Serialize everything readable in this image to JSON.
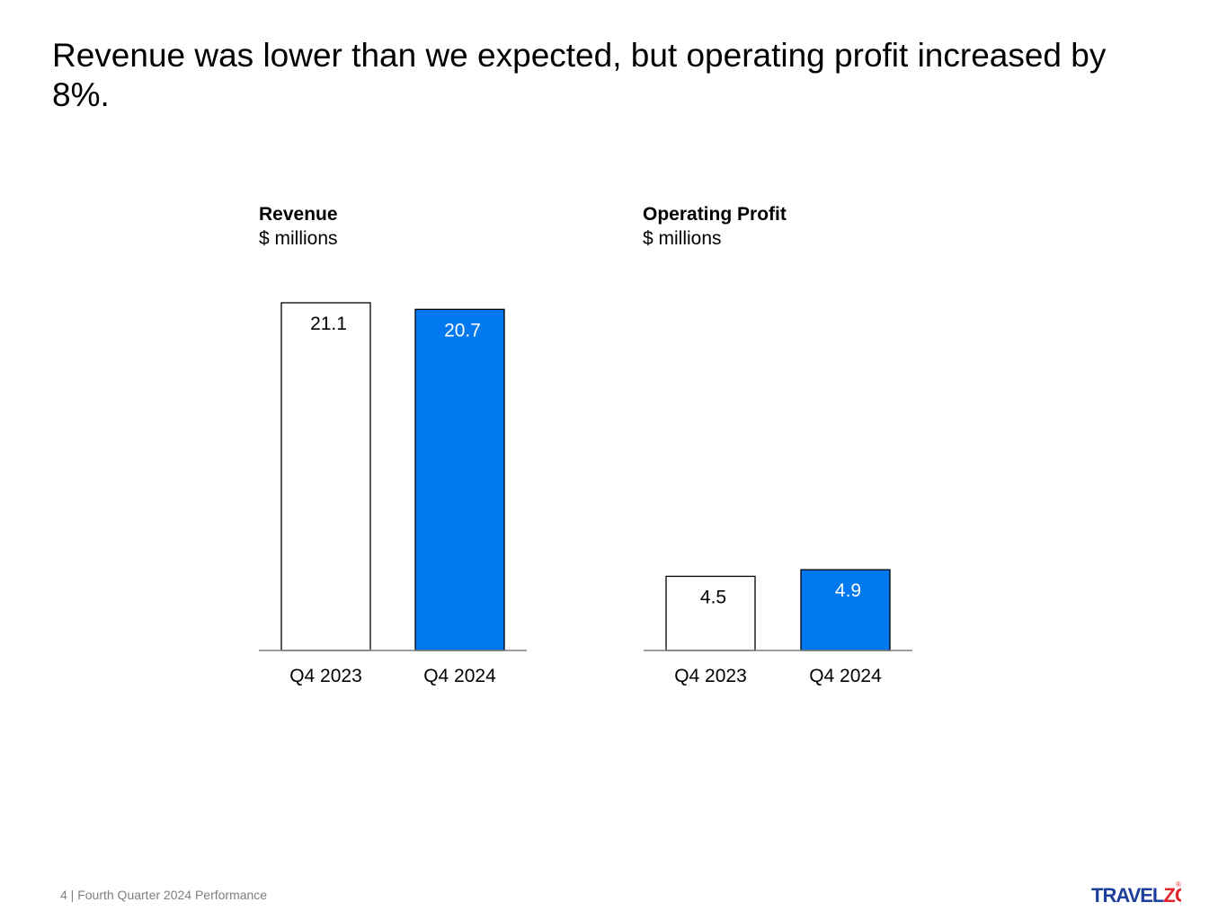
{
  "slide": {
    "title": "Revenue was lower than we expected, but operating profit increased by 8%.",
    "footer": "4 | Fourth Quarter 2024 Performance",
    "logo": {
      "text_main": "TRAVEL",
      "text_accent": "ZOO",
      "mark": "®"
    }
  },
  "colors": {
    "highlight": "#0078ef",
    "plain": "#ffffff",
    "outline": "#000000",
    "axis": "#7f7f7f",
    "logo_blue": "#1b3f9a",
    "logo_red": "#e3262d"
  },
  "chart_data": [
    {
      "type": "bar",
      "title": "Revenue",
      "subtitle": "$ millions",
      "categories": [
        "Q4 2023",
        "Q4 2024"
      ],
      "values": [
        21.1,
        20.7
      ],
      "labels": [
        "21.1",
        "20.7"
      ],
      "highlight": [
        false,
        true
      ],
      "ylim": [
        0,
        21.1
      ]
    },
    {
      "type": "bar",
      "title": "Operating Profit",
      "subtitle": "$ millions",
      "categories": [
        "Q4 2023",
        "Q4 2024"
      ],
      "values": [
        4.5,
        4.9
      ],
      "labels": [
        "4.5",
        "4.9"
      ],
      "highlight": [
        false,
        true
      ],
      "ylim": [
        0,
        21.1
      ]
    }
  ]
}
